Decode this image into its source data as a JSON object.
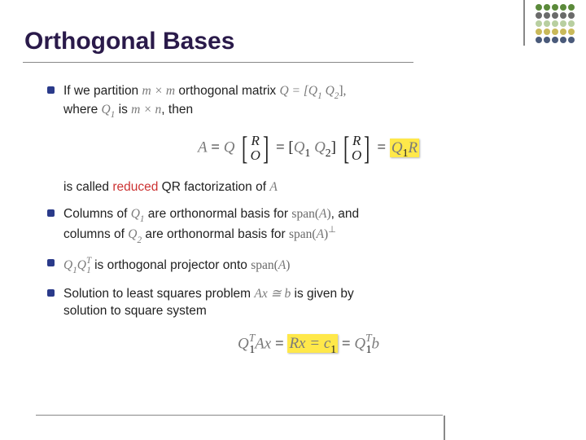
{
  "title": "Orthogonal Bases",
  "deco_colors": [
    "#5b8a3a",
    "#5b8a3a",
    "#5b8a3a",
    "#5b8a3a",
    "#5b8a3a",
    "#6a6a6a",
    "#6a6a6a",
    "#6a6a6a",
    "#6a6a6a",
    "#6a6a6a",
    "#b8cfa0",
    "#b8cfa0",
    "#b8cfa0",
    "#b8cfa0",
    "#b8cfa0",
    "#c9b95a",
    "#c9b95a",
    "#c9b95a",
    "#c9b95a",
    "#c9b95a",
    "#4a5a7a",
    "#4a5a7a",
    "#4a5a7a",
    "#4a5a7a",
    "#4a5a7a"
  ],
  "b1": {
    "pre": "If we partition ",
    "mxm": "m × m",
    "mid1": " orthogonal matrix ",
    "qdef": "Q = [Q",
    "q1s": "1",
    "qsp": " Q",
    "q2s": "2",
    "qend": "],",
    "line2a": "where ",
    "q1": "Q",
    "q1sub": "1",
    "line2b": " is ",
    "mxn": "m × n",
    "line2c": ", then"
  },
  "eq1": {
    "A": "A",
    "eq": " = ",
    "Q": "Q",
    "R": "R",
    "O": "O",
    "Q1": "Q",
    "s1": "1",
    "Q2": "Q",
    "s2": "2",
    "Q1R": "Q",
    "Q1Rs": "1",
    "Rr": "R"
  },
  "b1b": {
    "a": "is called ",
    "red": "reduced",
    "b": " QR factorization of ",
    "A": "A"
  },
  "b2": {
    "a": "Columns of ",
    "Q1": "Q",
    "s1": "1",
    "b": " are orthonormal basis for ",
    "span1": "span",
    "A1": "A",
    "c": ", and",
    "d": "columns of ",
    "Q2": "Q",
    "s2": "2",
    "e": " are orthonormal basis for ",
    "span2": "span",
    "A2": "A",
    "perp": "⊥"
  },
  "b3": {
    "Q1": "Q",
    "s1": "1",
    "Q1b": "Q",
    "s1b": "1",
    "T": "T",
    "a": " is orthogonal projector onto ",
    "span": "span",
    "A": "A"
  },
  "b4": {
    "a": "Solution to least squares problem ",
    "Ax": "Ax ≅ b",
    "b": " is given by",
    "c": "solution to square system"
  },
  "eq2": {
    "Q1": "Q",
    "s1": "1",
    "T": "T",
    "A": "A",
    "x": "x",
    "eq": " = ",
    "Rx": "Rx = c",
    "c1s": "1",
    "Q1b": "Q",
    "s1b": "1",
    "Tb": "T",
    "b": "b"
  }
}
